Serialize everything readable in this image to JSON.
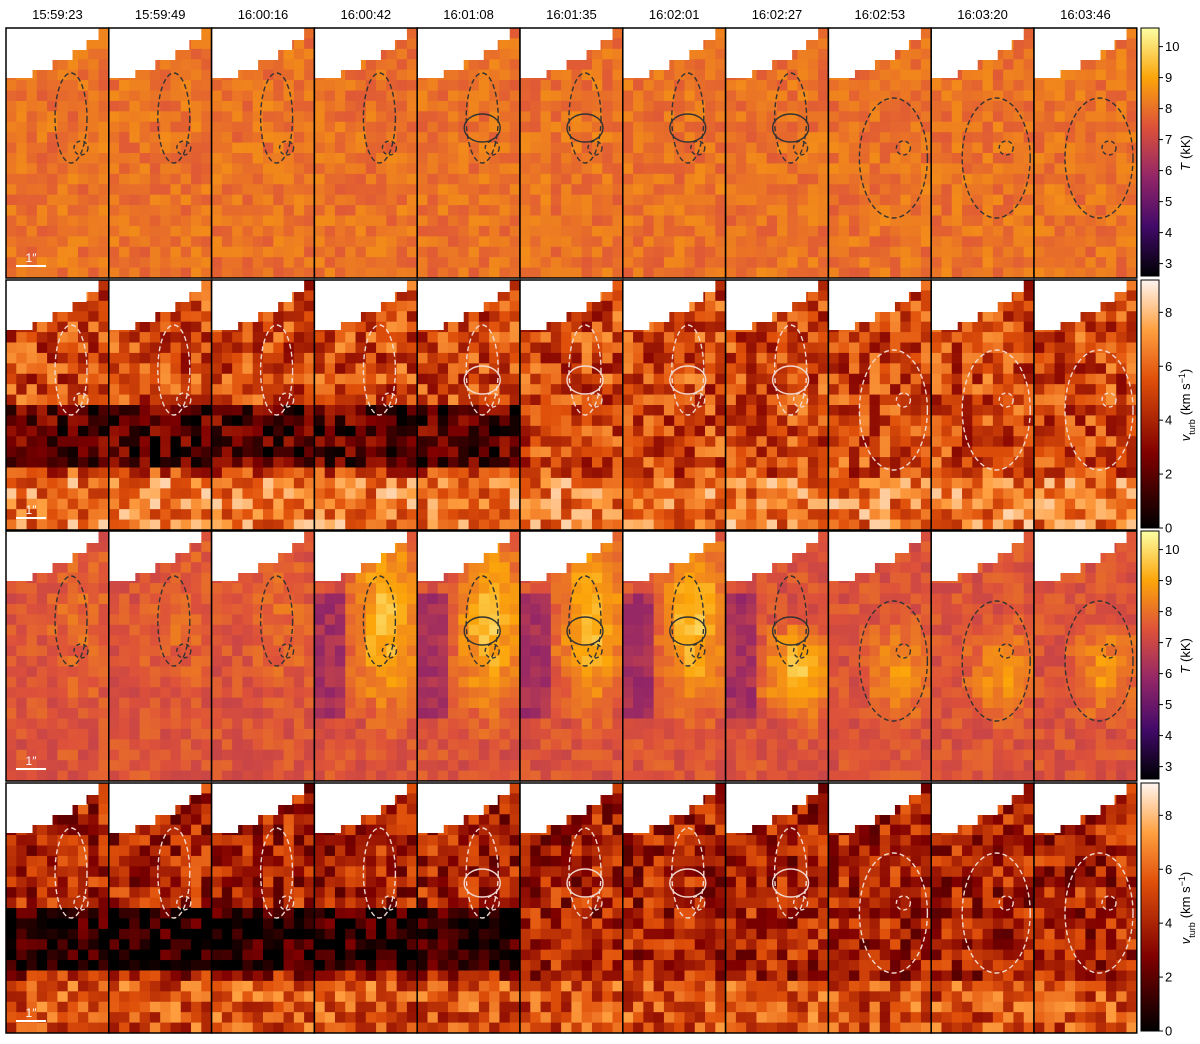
{
  "time_labels": [
    "15:59:23",
    "15:59:49",
    "16:00:16",
    "16:00:42",
    "16:01:08",
    "16:01:35",
    "16:02:01",
    "16:02:27",
    "16:02:53",
    "16:03:20",
    "16:03:46"
  ],
  "scale_bar": "1″",
  "colorbars": [
    {
      "symbol": "T",
      "unit": "(kK)",
      "lim": [
        2.6,
        10.6
      ],
      "ticks": [
        3,
        4,
        5,
        6,
        7,
        8,
        9,
        10
      ]
    },
    {
      "symbol": "v",
      "subscript": "turb",
      "unit": "(km s",
      "superscript": "−1",
      "close": ")",
      "lim": [
        0,
        9.2
      ],
      "ticks": [
        0,
        2,
        4,
        6,
        8
      ]
    },
    {
      "symbol": "T",
      "unit": "(kK)",
      "lim": [
        2.6,
        10.6
      ],
      "ticks": [
        3,
        4,
        5,
        6,
        7,
        8,
        9,
        10
      ]
    },
    {
      "symbol": "v",
      "subscript": "turb",
      "unit": "(km s",
      "superscript": "−1",
      "close": ")",
      "lim": [
        0,
        9.2
      ],
      "ticks": [
        0,
        2,
        4,
        6,
        8
      ]
    }
  ]
}
